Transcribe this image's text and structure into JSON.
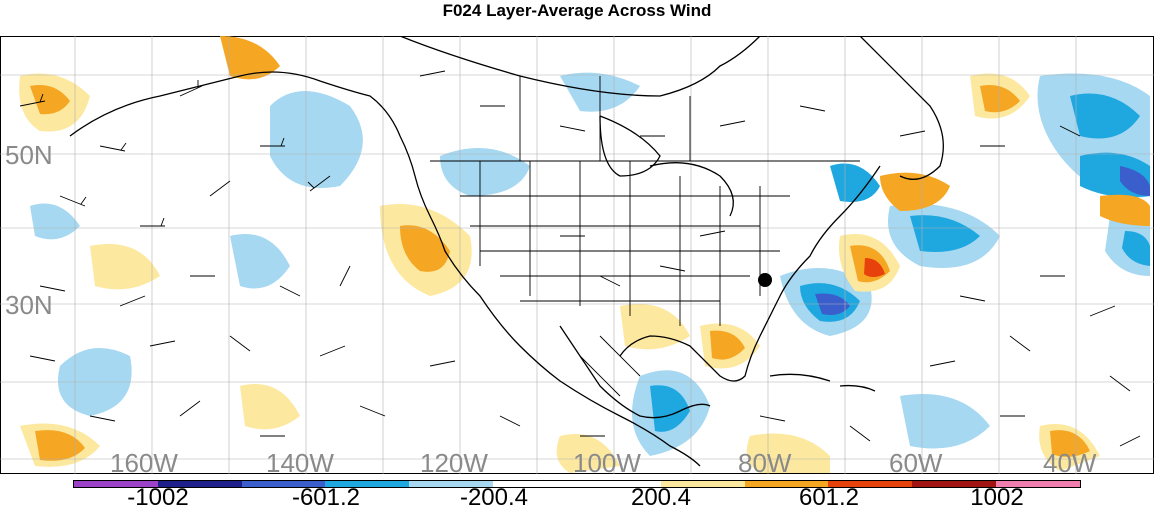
{
  "title": "F024 Layer-Average Across Wind",
  "lat_labels": [
    "50N",
    "30N"
  ],
  "lon_labels": [
    "160W",
    "140W",
    "120W",
    "100W",
    "80W",
    "60W",
    "40W"
  ],
  "colorbar": {
    "colors": [
      "#9b42c8",
      "#1f1f8c",
      "#3a5fcd",
      "#1fa7e0",
      "#a6d8f2",
      "#ffffff",
      "#ffffff",
      "#fde8a0",
      "#f5a623",
      "#e8420c",
      "#a11414",
      "#f07fb0"
    ],
    "labels": [
      "-1002",
      "-601.2",
      "-200.4",
      "200.4",
      "601.2",
      "1002"
    ]
  },
  "map": {
    "ocean_color": "#ffffff",
    "grid_color": "#b0b0b0",
    "marker": "station-dot"
  }
}
